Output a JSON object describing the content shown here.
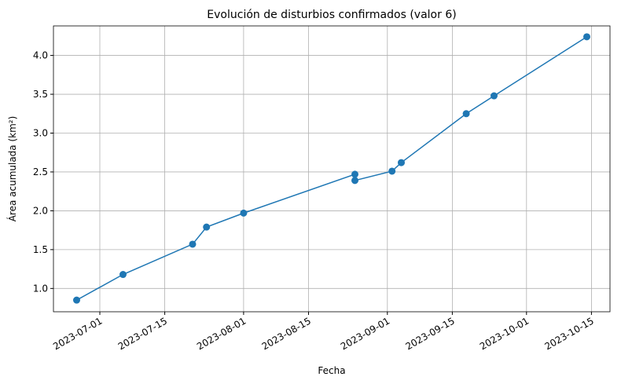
{
  "chart_data": {
    "type": "line",
    "title": "Evolución de disturbios confirmados (valor 6)",
    "x_label": "Fecha",
    "y_label": "Área acumulada (km²)",
    "x": [
      "2023-06-26",
      "2023-07-06",
      "2023-07-21",
      "2023-07-24",
      "2023-08-01",
      "2023-08-25",
      "2023-08-25",
      "2023-09-02",
      "2023-09-04",
      "2023-09-18",
      "2023-09-24",
      "2023-10-14"
    ],
    "series": [
      {
        "name": "Área acumulada",
        "color": "#1f77b4",
        "values": [
          0.85,
          1.18,
          1.57,
          1.79,
          1.97,
          2.47,
          2.39,
          2.51,
          2.62,
          3.25,
          3.48,
          4.24
        ]
      }
    ],
    "xlim": [
      "2023-06-21",
      "2023-10-19"
    ],
    "xticks": [
      "2023-07-01",
      "2023-07-15",
      "2023-08-01",
      "2023-08-15",
      "2023-09-01",
      "2023-09-15",
      "2023-10-01",
      "2023-10-15"
    ],
    "ylim": [
      0.7,
      4.38
    ],
    "yticks": [
      {
        "value": 1,
        "label": "1.0"
      },
      1.5,
      {
        "value": 2,
        "label": "2.0"
      },
      2.5,
      {
        "value": 3,
        "label": "3.0"
      },
      3.5,
      {
        "value": 4,
        "label": "4.0"
      }
    ],
    "grid": true
  }
}
